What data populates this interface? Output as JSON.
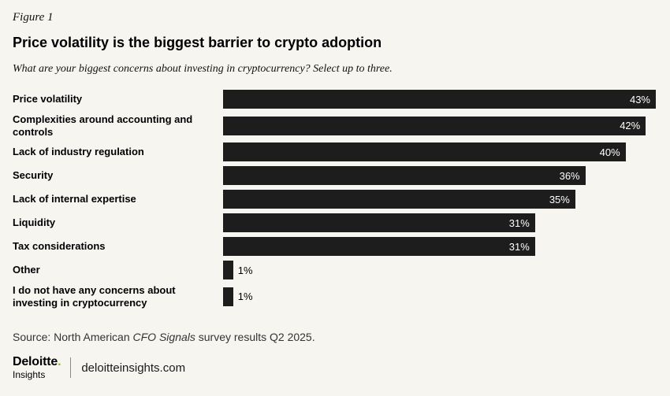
{
  "figure_label": "Figure 1",
  "title": "Price volatility is the biggest barrier to crypto adoption",
  "subtitle": "What are your biggest concerns about investing in cryptocurrency? Select up to three.",
  "source": {
    "prefix": "Source: North American ",
    "italic": "CFO Signals",
    "suffix": " survey results Q2 2025."
  },
  "footer": {
    "brand_main": "Deloitte",
    "brand_dot": ".",
    "brand_sub": "Insights",
    "site": "deloitteinsights.com"
  },
  "colors": {
    "background": "#f7f5f0",
    "bar": "#1d1d1d",
    "bar_label_inside": "#ffffff",
    "bar_label_outside": "#000000",
    "deloitte_green": "#86bc25"
  },
  "chart_data": {
    "type": "bar",
    "orientation": "horizontal",
    "title": "Price volatility is the biggest barrier to crypto adoption",
    "xlabel": "",
    "ylabel": "",
    "unit": "%",
    "xlim": [
      0,
      43
    ],
    "grid": false,
    "legend": false,
    "categories": [
      "Price volatility",
      "Complexities around accounting and controls",
      "Lack of industry regulation",
      "Security",
      "Lack of internal expertise",
      "Liquidity",
      "Tax considerations",
      "Other",
      "I do not have any concerns about investing in cryptocurrency"
    ],
    "values": [
      43,
      42,
      40,
      36,
      35,
      31,
      31,
      1,
      1
    ],
    "value_labels": [
      "43%",
      "42%",
      "40%",
      "36%",
      "35%",
      "31%",
      "31%",
      "1%",
      "1%"
    ]
  }
}
